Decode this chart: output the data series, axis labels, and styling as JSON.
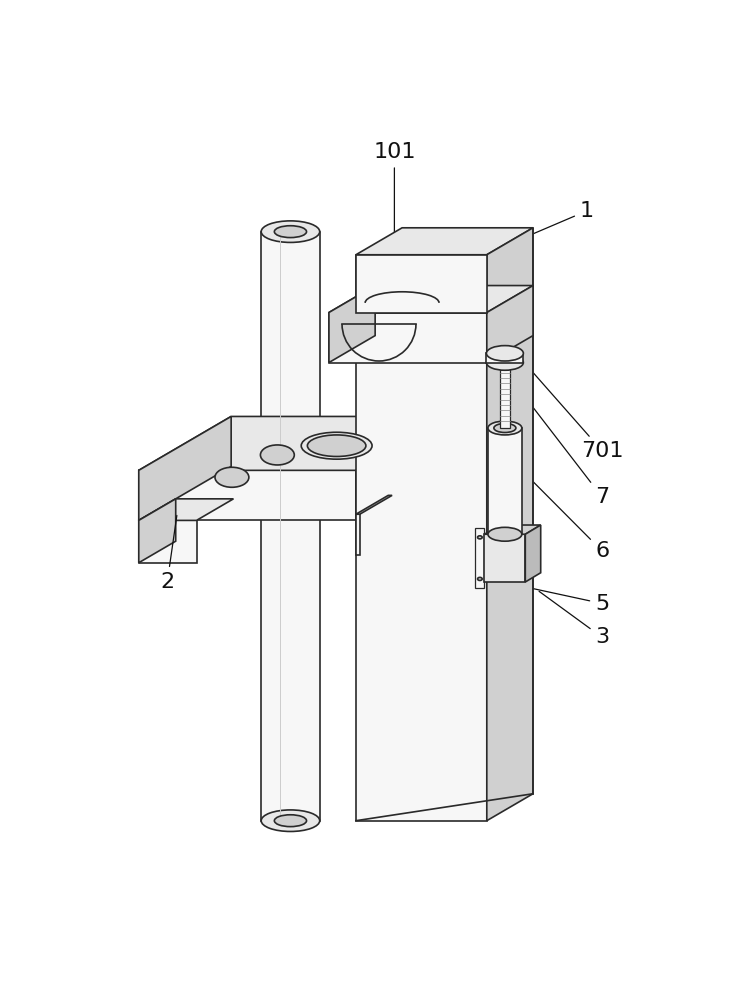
{
  "bg": "#ffffff",
  "lc": "#2a2a2a",
  "fc_light": "#f7f7f7",
  "fc_mid": "#e8e8e8",
  "fc_dark": "#d0d0d0",
  "fc_darker": "#bbbbbb",
  "label_fs": 16,
  "anno_lw": 0.9
}
